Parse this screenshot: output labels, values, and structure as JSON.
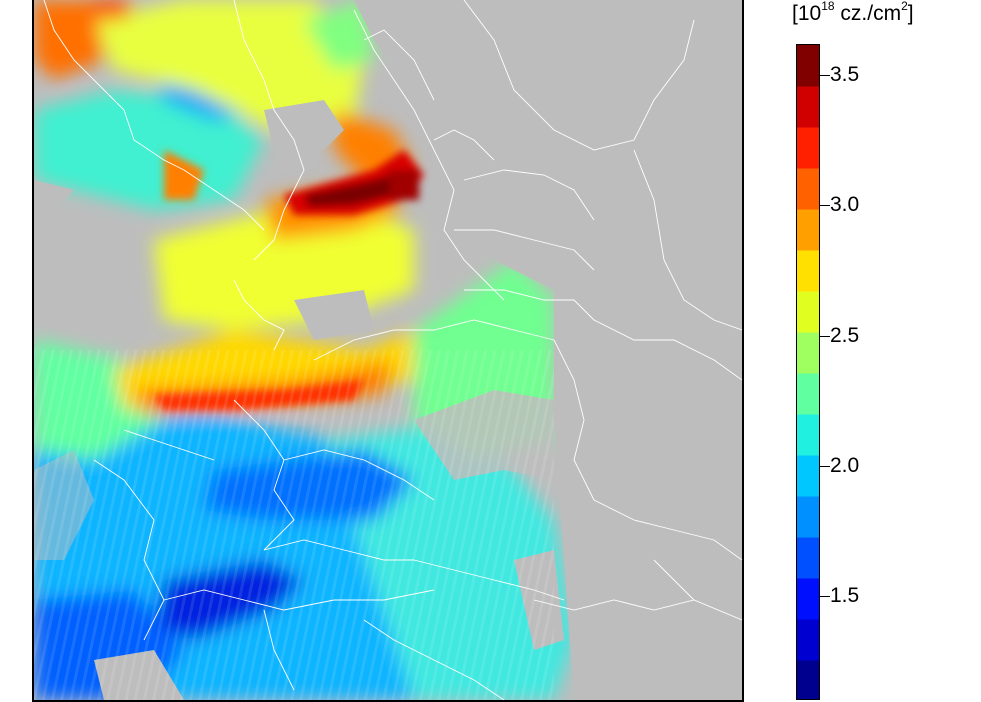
{
  "colorbar": {
    "unit_base": "[10",
    "unit_exponent": "18",
    "unit_mid": " cz./cm",
    "unit_power": "2",
    "unit_end": "]",
    "min": 1.1,
    "max": 3.62,
    "ticks": [
      {
        "value": 3.5,
        "label": "3.5"
      },
      {
        "value": 3.0,
        "label": "3.0"
      },
      {
        "value": 2.5,
        "label": "2.5"
      },
      {
        "value": 2.0,
        "label": "2.0"
      },
      {
        "value": 1.5,
        "label": "1.5"
      }
    ],
    "colors": [
      "#00008f",
      "#0000d0",
      "#0010ff",
      "#0050ff",
      "#0090ff",
      "#00c8ff",
      "#20f0e0",
      "#60ffa0",
      "#a0ff60",
      "#e0ff20",
      "#ffe000",
      "#ffa000",
      "#ff6000",
      "#ff2000",
      "#d00000",
      "#800000"
    ]
  },
  "map": {
    "background_color": "#bdbdbd",
    "border_color": "#ffffff"
  }
}
